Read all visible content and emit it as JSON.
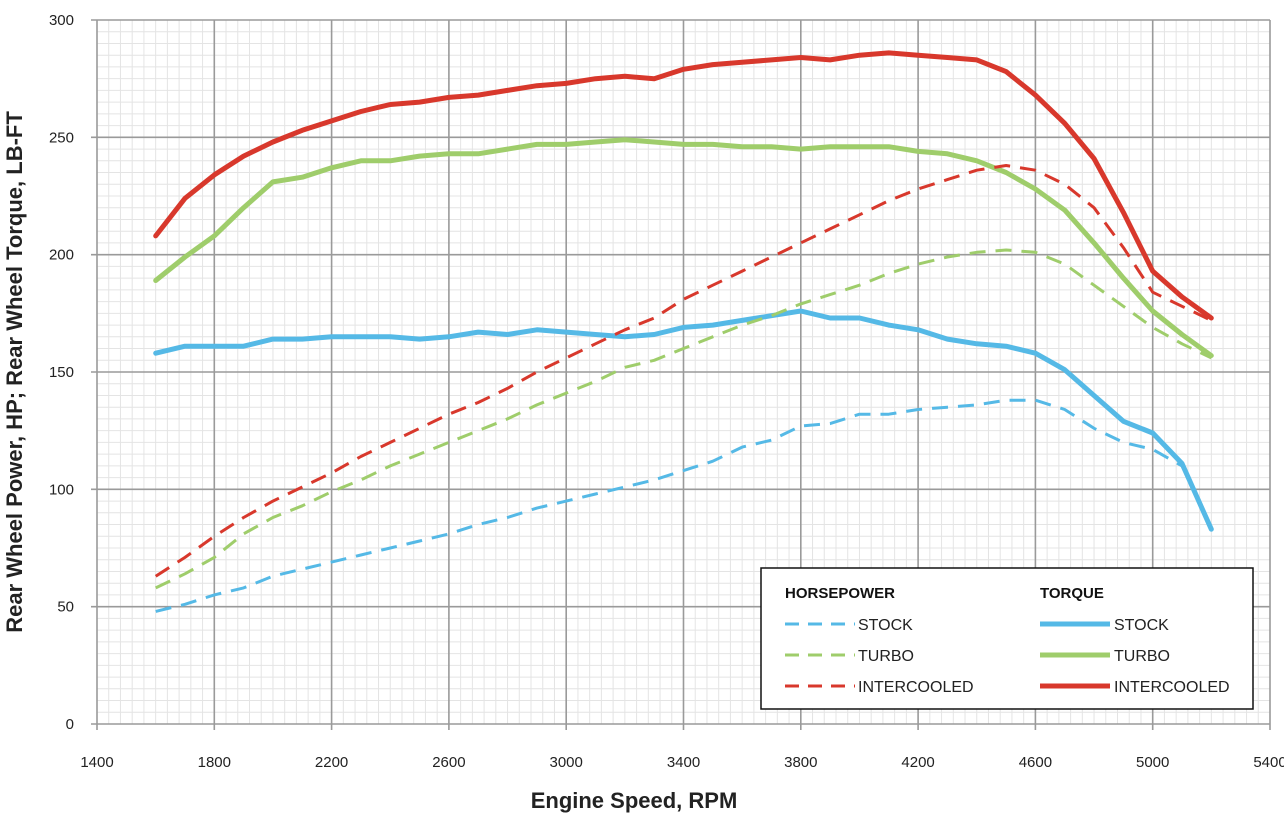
{
  "chart_data": {
    "type": "line",
    "title": "",
    "xlabel": "Engine Speed, RPM",
    "ylabel": "Rear Wheel Power, HP; Rear Wheel Torque, LB-FT",
    "xlim": [
      1400,
      5400
    ],
    "ylim": [
      0,
      300
    ],
    "x_ticks": [
      1400,
      1800,
      2200,
      2600,
      3000,
      3400,
      3800,
      4200,
      4600,
      5000,
      5400
    ],
    "y_ticks": [
      0,
      50,
      100,
      150,
      200,
      250,
      300
    ],
    "grid": true,
    "legend_position": "bottom-right",
    "legend_groups": [
      {
        "heading": "HORSEPOWER",
        "style": "dashed",
        "entries": [
          "STOCK",
          "TURBO",
          "INTERCOOLED"
        ]
      },
      {
        "heading": "TORQUE",
        "style": "solid",
        "entries": [
          "STOCK",
          "TURBO",
          "INTERCOOLED"
        ]
      }
    ],
    "colors": {
      "stock": "#55b9e6",
      "turbo": "#9fcd6b",
      "intercooled": "#d8382c"
    },
    "series": [
      {
        "name": "INTERCOOLED",
        "group": "TORQUE",
        "style": "solid",
        "color": "#d8382c",
        "x": [
          1600,
          1700,
          1800,
          1900,
          2000,
          2100,
          2200,
          2300,
          2400,
          2500,
          2600,
          2700,
          2800,
          2900,
          3000,
          3100,
          3200,
          3300,
          3400,
          3500,
          3600,
          3700,
          3800,
          3900,
          4000,
          4100,
          4200,
          4300,
          4400,
          4500,
          4600,
          4700,
          4800,
          4900,
          5000,
          5100,
          5200
        ],
        "y": [
          208,
          224,
          234,
          242,
          248,
          253,
          257,
          261,
          264,
          265,
          267,
          268,
          270,
          272,
          273,
          275,
          276,
          275,
          279,
          281,
          282,
          283,
          284,
          283,
          285,
          286,
          285,
          284,
          283,
          278,
          268,
          256,
          241,
          218,
          193,
          182,
          173
        ]
      },
      {
        "name": "TURBO",
        "group": "TORQUE",
        "style": "solid",
        "color": "#9fcd6b",
        "x": [
          1600,
          1700,
          1800,
          1900,
          2000,
          2100,
          2200,
          2300,
          2400,
          2500,
          2600,
          2700,
          2800,
          2900,
          3000,
          3100,
          3200,
          3300,
          3400,
          3500,
          3600,
          3700,
          3800,
          3900,
          4000,
          4100,
          4200,
          4300,
          4400,
          4500,
          4600,
          4700,
          4800,
          4900,
          5000,
          5100,
          5200
        ],
        "y": [
          189,
          199,
          208,
          220,
          231,
          233,
          237,
          240,
          240,
          242,
          243,
          243,
          245,
          247,
          247,
          248,
          249,
          248,
          247,
          247,
          246,
          246,
          245,
          246,
          246,
          246,
          244,
          243,
          240,
          235,
          228,
          219,
          205,
          190,
          176,
          166,
          157
        ]
      },
      {
        "name": "STOCK",
        "group": "TORQUE",
        "style": "solid",
        "color": "#55b9e6",
        "x": [
          1600,
          1700,
          1800,
          1900,
          2000,
          2100,
          2200,
          2300,
          2400,
          2500,
          2600,
          2700,
          2800,
          2900,
          3000,
          3100,
          3200,
          3300,
          3400,
          3500,
          3600,
          3700,
          3800,
          3900,
          4000,
          4100,
          4200,
          4300,
          4400,
          4500,
          4600,
          4700,
          4800,
          4900,
          5000,
          5100,
          5200
        ],
        "y": [
          158,
          161,
          161,
          161,
          164,
          164,
          165,
          165,
          165,
          164,
          165,
          167,
          166,
          168,
          167,
          166,
          165,
          166,
          169,
          170,
          172,
          174,
          176,
          173,
          173,
          170,
          168,
          164,
          162,
          161,
          158,
          151,
          140,
          129,
          124,
          111,
          83
        ]
      },
      {
        "name": "INTERCOOLED",
        "group": "HORSEPOWER",
        "style": "dashed",
        "color": "#d8382c",
        "x": [
          1600,
          1700,
          1800,
          1900,
          2000,
          2100,
          2200,
          2300,
          2400,
          2500,
          2600,
          2700,
          2800,
          2900,
          3000,
          3100,
          3200,
          3300,
          3400,
          3500,
          3600,
          3700,
          3800,
          3900,
          4000,
          4100,
          4200,
          4300,
          4400,
          4500,
          4600,
          4700,
          4800,
          4900,
          5000,
          5100,
          5200
        ],
        "y": [
          63,
          71,
          80,
          88,
          95,
          101,
          107,
          114,
          120,
          126,
          132,
          137,
          143,
          150,
          156,
          162,
          168,
          173,
          181,
          187,
          193,
          199,
          205,
          211,
          217,
          223,
          228,
          232,
          236,
          238,
          236,
          230,
          220,
          203,
          184,
          178,
          172
        ]
      },
      {
        "name": "TURBO",
        "group": "HORSEPOWER",
        "style": "dashed",
        "color": "#9fcd6b",
        "x": [
          1600,
          1700,
          1800,
          1900,
          2000,
          2100,
          2200,
          2300,
          2400,
          2500,
          2600,
          2700,
          2800,
          2900,
          3000,
          3100,
          3200,
          3300,
          3400,
          3500,
          3600,
          3700,
          3800,
          3900,
          4000,
          4100,
          4200,
          4300,
          4400,
          4500,
          4600,
          4700,
          4800,
          4900,
          5000,
          5100,
          5200
        ],
        "y": [
          58,
          64,
          71,
          81,
          88,
          93,
          99,
          104,
          110,
          115,
          120,
          125,
          130,
          136,
          141,
          146,
          152,
          155,
          160,
          165,
          170,
          174,
          179,
          183,
          187,
          192,
          196,
          199,
          201,
          202,
          201,
          196,
          187,
          178,
          169,
          162,
          156
        ]
      },
      {
        "name": "STOCK",
        "group": "HORSEPOWER",
        "style": "dashed",
        "color": "#55b9e6",
        "x": [
          1600,
          1700,
          1800,
          1900,
          2000,
          2100,
          2200,
          2300,
          2400,
          2500,
          2600,
          2700,
          2800,
          2900,
          3000,
          3100,
          3200,
          3300,
          3400,
          3500,
          3600,
          3700,
          3800,
          3900,
          4000,
          4100,
          4200,
          4300,
          4400,
          4500,
          4600,
          4700,
          4800,
          4900,
          5000,
          5100,
          5200
        ],
        "y": [
          48,
          51,
          55,
          58,
          63,
          66,
          69,
          72,
          75,
          78,
          81,
          85,
          88,
          92,
          95,
          98,
          101,
          104,
          108,
          112,
          118,
          121,
          127,
          128,
          132,
          132,
          134,
          135,
          136,
          138,
          138,
          134,
          126,
          120,
          117,
          110,
          83
        ]
      }
    ]
  }
}
